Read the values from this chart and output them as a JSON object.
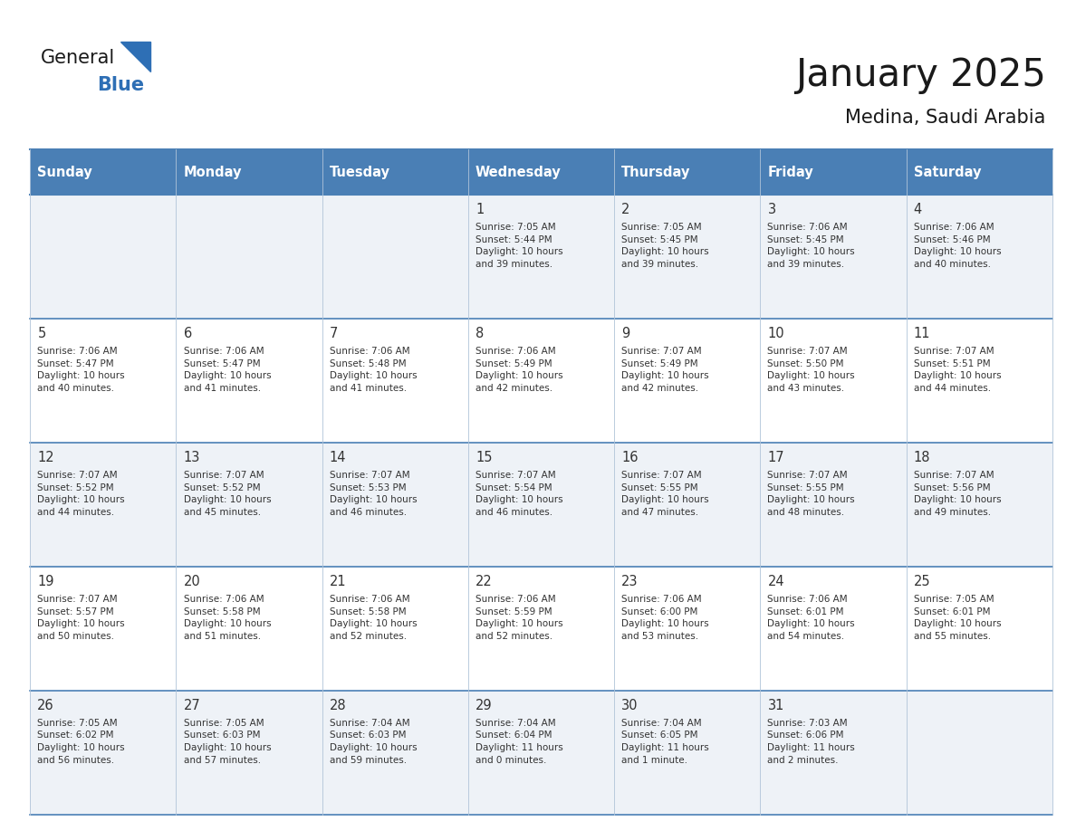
{
  "title": "January 2025",
  "subtitle": "Medina, Saudi Arabia",
  "days_of_week": [
    "Sunday",
    "Monday",
    "Tuesday",
    "Wednesday",
    "Thursday",
    "Friday",
    "Saturday"
  ],
  "header_bg": "#4a7fb5",
  "header_text_color": "#ffffff",
  "cell_bg_light": "#eef2f7",
  "cell_bg_white": "#ffffff",
  "border_color": "#4a7fb5",
  "grid_line_color": "#b0c4d8",
  "text_color": "#333333",
  "title_color": "#1a1a1a",
  "logo_general_color": "#1a1a1a",
  "logo_blue_color": "#2e6fb5",
  "calendar_data": [
    [
      {
        "day": null,
        "info": ""
      },
      {
        "day": null,
        "info": ""
      },
      {
        "day": null,
        "info": ""
      },
      {
        "day": 1,
        "info": "Sunrise: 7:05 AM\nSunset: 5:44 PM\nDaylight: 10 hours\nand 39 minutes."
      },
      {
        "day": 2,
        "info": "Sunrise: 7:05 AM\nSunset: 5:45 PM\nDaylight: 10 hours\nand 39 minutes."
      },
      {
        "day": 3,
        "info": "Sunrise: 7:06 AM\nSunset: 5:45 PM\nDaylight: 10 hours\nand 39 minutes."
      },
      {
        "day": 4,
        "info": "Sunrise: 7:06 AM\nSunset: 5:46 PM\nDaylight: 10 hours\nand 40 minutes."
      }
    ],
    [
      {
        "day": 5,
        "info": "Sunrise: 7:06 AM\nSunset: 5:47 PM\nDaylight: 10 hours\nand 40 minutes."
      },
      {
        "day": 6,
        "info": "Sunrise: 7:06 AM\nSunset: 5:47 PM\nDaylight: 10 hours\nand 41 minutes."
      },
      {
        "day": 7,
        "info": "Sunrise: 7:06 AM\nSunset: 5:48 PM\nDaylight: 10 hours\nand 41 minutes."
      },
      {
        "day": 8,
        "info": "Sunrise: 7:06 AM\nSunset: 5:49 PM\nDaylight: 10 hours\nand 42 minutes."
      },
      {
        "day": 9,
        "info": "Sunrise: 7:07 AM\nSunset: 5:49 PM\nDaylight: 10 hours\nand 42 minutes."
      },
      {
        "day": 10,
        "info": "Sunrise: 7:07 AM\nSunset: 5:50 PM\nDaylight: 10 hours\nand 43 minutes."
      },
      {
        "day": 11,
        "info": "Sunrise: 7:07 AM\nSunset: 5:51 PM\nDaylight: 10 hours\nand 44 minutes."
      }
    ],
    [
      {
        "day": 12,
        "info": "Sunrise: 7:07 AM\nSunset: 5:52 PM\nDaylight: 10 hours\nand 44 minutes."
      },
      {
        "day": 13,
        "info": "Sunrise: 7:07 AM\nSunset: 5:52 PM\nDaylight: 10 hours\nand 45 minutes."
      },
      {
        "day": 14,
        "info": "Sunrise: 7:07 AM\nSunset: 5:53 PM\nDaylight: 10 hours\nand 46 minutes."
      },
      {
        "day": 15,
        "info": "Sunrise: 7:07 AM\nSunset: 5:54 PM\nDaylight: 10 hours\nand 46 minutes."
      },
      {
        "day": 16,
        "info": "Sunrise: 7:07 AM\nSunset: 5:55 PM\nDaylight: 10 hours\nand 47 minutes."
      },
      {
        "day": 17,
        "info": "Sunrise: 7:07 AM\nSunset: 5:55 PM\nDaylight: 10 hours\nand 48 minutes."
      },
      {
        "day": 18,
        "info": "Sunrise: 7:07 AM\nSunset: 5:56 PM\nDaylight: 10 hours\nand 49 minutes."
      }
    ],
    [
      {
        "day": 19,
        "info": "Sunrise: 7:07 AM\nSunset: 5:57 PM\nDaylight: 10 hours\nand 50 minutes."
      },
      {
        "day": 20,
        "info": "Sunrise: 7:06 AM\nSunset: 5:58 PM\nDaylight: 10 hours\nand 51 minutes."
      },
      {
        "day": 21,
        "info": "Sunrise: 7:06 AM\nSunset: 5:58 PM\nDaylight: 10 hours\nand 52 minutes."
      },
      {
        "day": 22,
        "info": "Sunrise: 7:06 AM\nSunset: 5:59 PM\nDaylight: 10 hours\nand 52 minutes."
      },
      {
        "day": 23,
        "info": "Sunrise: 7:06 AM\nSunset: 6:00 PM\nDaylight: 10 hours\nand 53 minutes."
      },
      {
        "day": 24,
        "info": "Sunrise: 7:06 AM\nSunset: 6:01 PM\nDaylight: 10 hours\nand 54 minutes."
      },
      {
        "day": 25,
        "info": "Sunrise: 7:05 AM\nSunset: 6:01 PM\nDaylight: 10 hours\nand 55 minutes."
      }
    ],
    [
      {
        "day": 26,
        "info": "Sunrise: 7:05 AM\nSunset: 6:02 PM\nDaylight: 10 hours\nand 56 minutes."
      },
      {
        "day": 27,
        "info": "Sunrise: 7:05 AM\nSunset: 6:03 PM\nDaylight: 10 hours\nand 57 minutes."
      },
      {
        "day": 28,
        "info": "Sunrise: 7:04 AM\nSunset: 6:03 PM\nDaylight: 10 hours\nand 59 minutes."
      },
      {
        "day": 29,
        "info": "Sunrise: 7:04 AM\nSunset: 6:04 PM\nDaylight: 11 hours\nand 0 minutes."
      },
      {
        "day": 30,
        "info": "Sunrise: 7:04 AM\nSunset: 6:05 PM\nDaylight: 11 hours\nand 1 minute."
      },
      {
        "day": 31,
        "info": "Sunrise: 7:03 AM\nSunset: 6:06 PM\nDaylight: 11 hours\nand 2 minutes."
      },
      {
        "day": null,
        "info": ""
      }
    ]
  ]
}
